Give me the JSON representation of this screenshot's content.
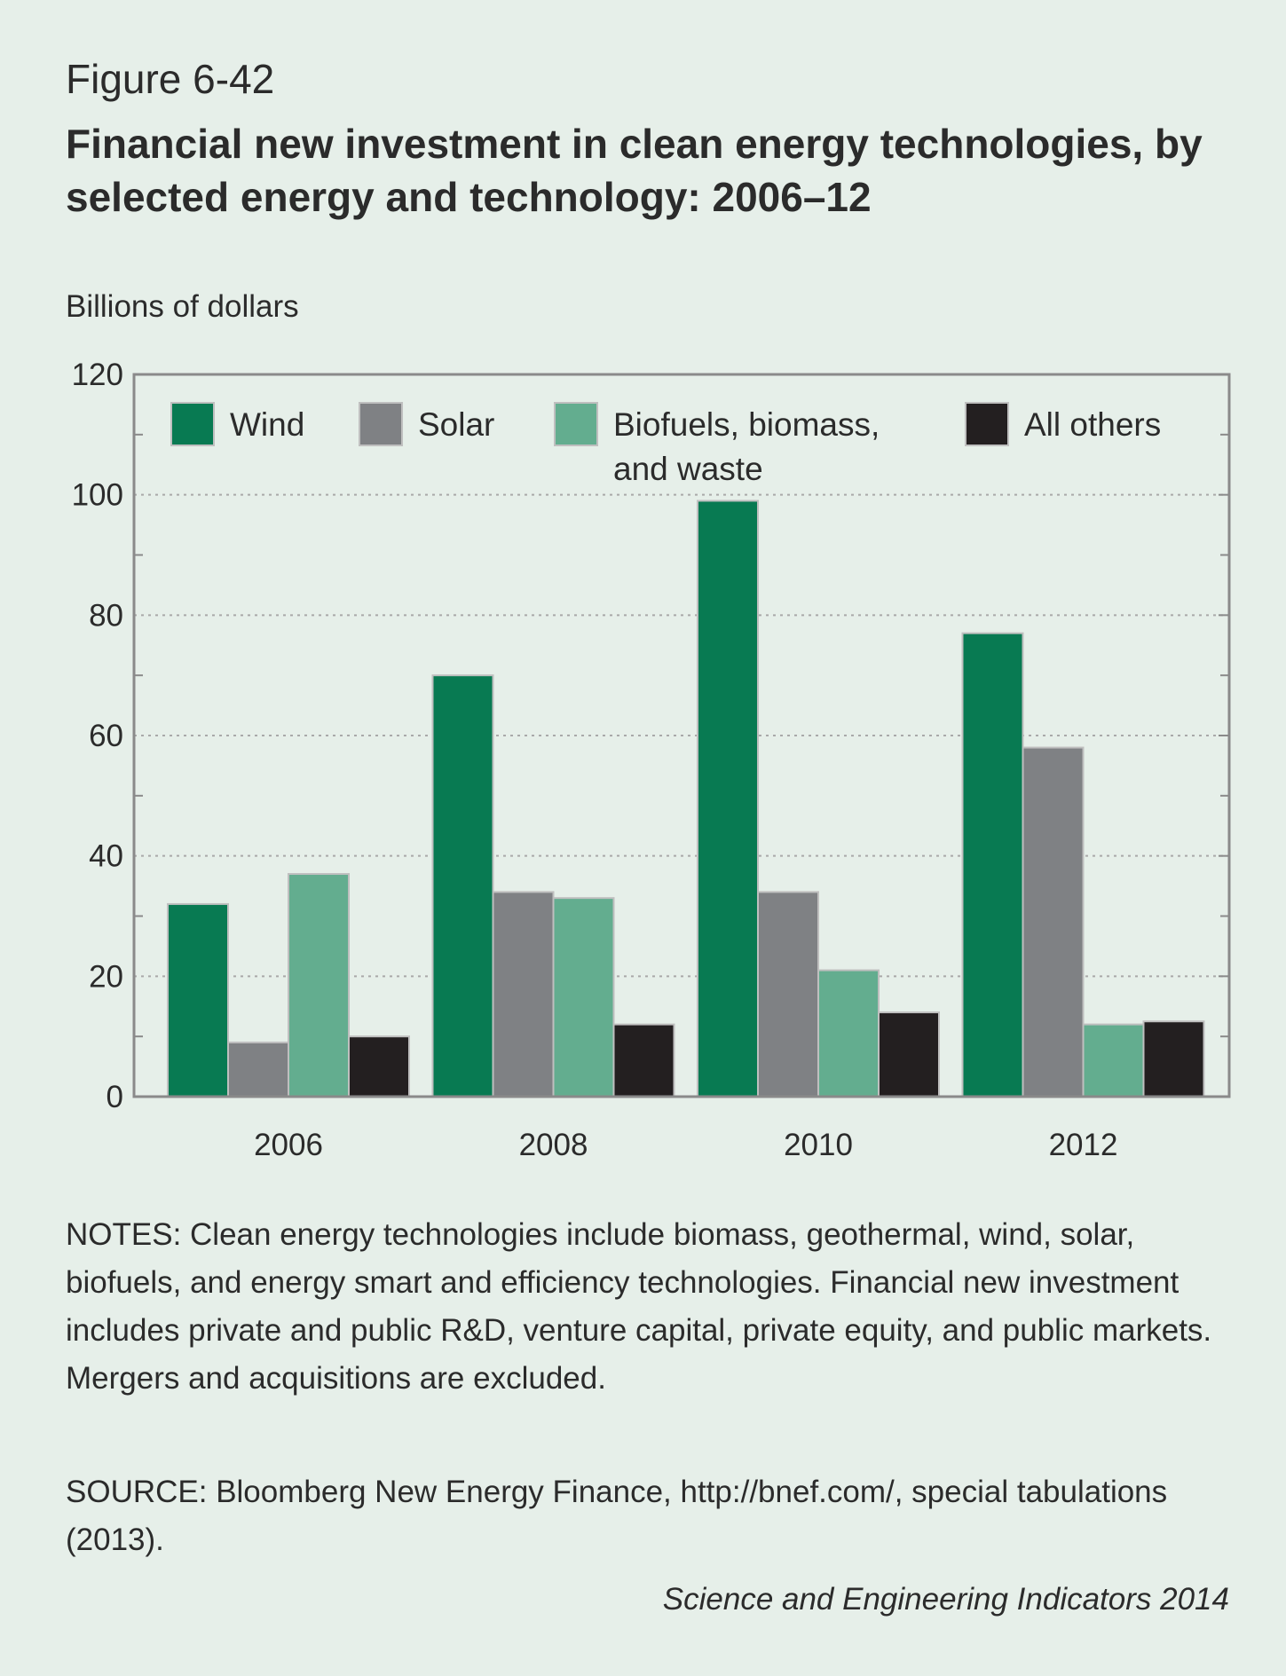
{
  "figure_label": "Figure 6-42",
  "notes": "NOTES: Clean energy technologies include biomass, geothermal, wind, solar, biofuels, and energy smart and efficiency technologies. Financial new investment includes private and public R&D, venture capital, private equity, and public markets. Mergers and acquisitions are excluded.",
  "source": "SOURCE: Bloomberg New Energy Finance, http://bnef.com/, special tabulations (2013).",
  "credit": "Science and Engineering Indicators 2014",
  "chart_data": {
    "type": "bar",
    "title": "Financial new investment in clean energy technologies, by selected energy and technology: 2006–12",
    "ylabel": "Billions of dollars",
    "xlabel": "",
    "categories": [
      "2006",
      "2008",
      "2010",
      "2012"
    ],
    "ylim": [
      0,
      120
    ],
    "yticks": [
      0,
      20,
      40,
      60,
      80,
      100,
      120
    ],
    "grid": true,
    "legend_position": "top",
    "series": [
      {
        "name": "Wind",
        "color": "#087a52",
        "values": [
          32,
          70,
          99,
          77
        ]
      },
      {
        "name": "Solar",
        "color": "#7f8184",
        "values": [
          9,
          34,
          34,
          58
        ]
      },
      {
        "name": "Biofuels, biomass, and waste",
        "color": "#63ad8f",
        "values": [
          37,
          33,
          21,
          12
        ]
      },
      {
        "name": "All others",
        "color": "#231f20",
        "values": [
          10,
          12,
          14,
          12.5
        ]
      }
    ]
  }
}
